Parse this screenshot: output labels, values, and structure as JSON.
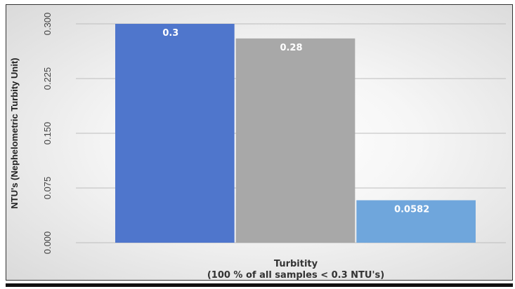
{
  "chart_data": {
    "type": "bar",
    "title": "",
    "xlabel": "Turbitity",
    "xlabel_line2": "(100 % of all samples < 0.3 NTU's)",
    "ylabel": "NTU's (Nephelometric Turbity Unit)",
    "ylim": [
      0,
      0.3
    ],
    "yticks": [
      "0.000",
      "0.075",
      "0.150",
      "0.225",
      "0.300"
    ],
    "grid": true,
    "legend": "none",
    "series": [
      {
        "values": [
          0.3,
          0.28,
          0.0582
        ],
        "labels": [
          "0.3",
          "0.28",
          "0.0582"
        ]
      }
    ],
    "colors": [
      "#4f76cc",
      "#a8a8a8",
      "#6fa6dc"
    ]
  }
}
